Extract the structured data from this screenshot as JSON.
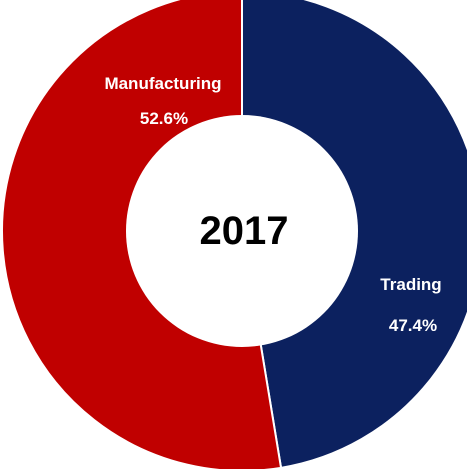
{
  "chart_data": {
    "type": "pie",
    "variant": "donut",
    "center_text": "2017",
    "slices": [
      {
        "label": "Trading",
        "value_label": "47.4%",
        "value": 47.4,
        "color": "#0c215f"
      },
      {
        "label": "Manufacturing",
        "value_label": "52.6%",
        "value": 52.6,
        "color": "#c00000"
      }
    ],
    "start": "12 o'clock",
    "direction": "clockwise",
    "legend": "none"
  }
}
